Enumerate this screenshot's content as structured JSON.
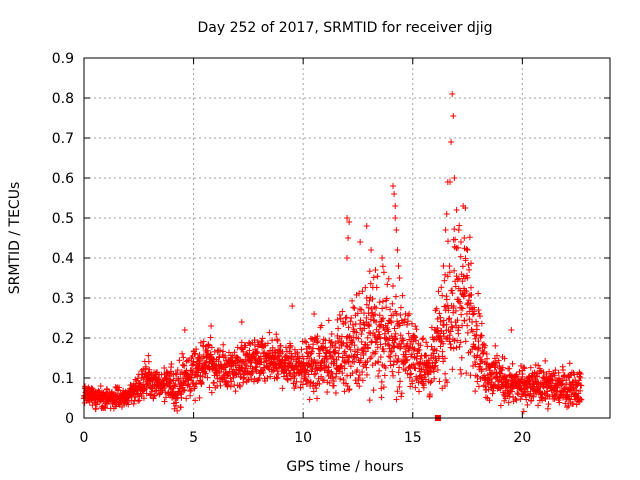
{
  "chart_data": {
    "type": "scatter",
    "title": "Day 252 of 2017, SRMTID for receiver djig",
    "xlabel": "GPS time / hours",
    "ylabel": "SRMTID / TECUs",
    "xlim": [
      0,
      24
    ],
    "ylim": [
      0,
      0.9
    ],
    "xticks": [
      0,
      5,
      10,
      15,
      20
    ],
    "xtick_labels": [
      "0",
      "5",
      "10",
      "15",
      "20"
    ],
    "yticks": [
      0,
      0.1,
      0.2,
      0.3,
      0.4,
      0.5,
      0.6,
      0.7,
      0.8,
      0.9
    ],
    "ytick_labels": [
      "0",
      "0.1",
      "0.2",
      "0.3",
      "0.4",
      "0.5",
      "0.6",
      "0.7",
      "0.8",
      "0.9"
    ],
    "grid": true,
    "marker": "+",
    "color": "#ff0000",
    "series": [
      {
        "name": "SRMTID",
        "profile": [
          {
            "x": 0.0,
            "base": 0.06,
            "spread": 0.025
          },
          {
            "x": 1.0,
            "base": 0.05,
            "spread": 0.02
          },
          {
            "x": 2.0,
            "base": 0.05,
            "spread": 0.02
          },
          {
            "x": 2.8,
            "base": 0.1,
            "spread": 0.04
          },
          {
            "x": 3.5,
            "base": 0.08,
            "spread": 0.03
          },
          {
            "x": 4.3,
            "base": 0.08,
            "spread": 0.05
          },
          {
            "x": 5.5,
            "base": 0.14,
            "spread": 0.05
          },
          {
            "x": 6.5,
            "base": 0.12,
            "spread": 0.04
          },
          {
            "x": 7.5,
            "base": 0.14,
            "spread": 0.05
          },
          {
            "x": 9.0,
            "base": 0.14,
            "spread": 0.05
          },
          {
            "x": 10.5,
            "base": 0.13,
            "spread": 0.06
          },
          {
            "x": 12.0,
            "base": 0.17,
            "spread": 0.08
          },
          {
            "x": 13.0,
            "base": 0.22,
            "spread": 0.12
          },
          {
            "x": 14.0,
            "base": 0.2,
            "spread": 0.12
          },
          {
            "x": 15.0,
            "base": 0.16,
            "spread": 0.07
          },
          {
            "x": 15.8,
            "base": 0.12,
            "spread": 0.06
          },
          {
            "x": 16.8,
            "base": 0.3,
            "spread": 0.15
          },
          {
            "x": 17.5,
            "base": 0.3,
            "spread": 0.14
          },
          {
            "x": 18.3,
            "base": 0.12,
            "spread": 0.06
          },
          {
            "x": 19.5,
            "base": 0.08,
            "spread": 0.04
          },
          {
            "x": 21.0,
            "base": 0.08,
            "spread": 0.04
          },
          {
            "x": 22.7,
            "base": 0.08,
            "spread": 0.04
          }
        ],
        "outliers": [
          {
            "x": 12.0,
            "y": 0.5
          },
          {
            "x": 12.1,
            "y": 0.49
          },
          {
            "x": 12.05,
            "y": 0.45
          },
          {
            "x": 12.0,
            "y": 0.4
          },
          {
            "x": 12.6,
            "y": 0.44
          },
          {
            "x": 12.9,
            "y": 0.48
          },
          {
            "x": 13.1,
            "y": 0.42
          },
          {
            "x": 13.3,
            "y": 0.37
          },
          {
            "x": 13.6,
            "y": 0.4
          },
          {
            "x": 14.1,
            "y": 0.58
          },
          {
            "x": 14.15,
            "y": 0.56
          },
          {
            "x": 14.2,
            "y": 0.53
          },
          {
            "x": 14.2,
            "y": 0.5
          },
          {
            "x": 14.25,
            "y": 0.47
          },
          {
            "x": 14.3,
            "y": 0.42
          },
          {
            "x": 14.35,
            "y": 0.38
          },
          {
            "x": 14.4,
            "y": 0.35
          },
          {
            "x": 14.1,
            "y": 0.33
          },
          {
            "x": 16.4,
            "y": 0.38
          },
          {
            "x": 16.5,
            "y": 0.47
          },
          {
            "x": 16.55,
            "y": 0.51
          },
          {
            "x": 16.6,
            "y": 0.59
          },
          {
            "x": 16.7,
            "y": 0.59
          },
          {
            "x": 16.75,
            "y": 0.69
          },
          {
            "x": 16.85,
            "y": 0.755
          },
          {
            "x": 16.8,
            "y": 0.81
          },
          {
            "x": 16.9,
            "y": 0.6
          },
          {
            "x": 17.0,
            "y": 0.52
          },
          {
            "x": 17.1,
            "y": 0.47
          },
          {
            "x": 17.2,
            "y": 0.44
          },
          {
            "x": 17.3,
            "y": 0.53
          },
          {
            "x": 17.4,
            "y": 0.525
          },
          {
            "x": 17.35,
            "y": 0.45
          },
          {
            "x": 17.5,
            "y": 0.42
          },
          {
            "x": 9.5,
            "y": 0.28
          },
          {
            "x": 10.5,
            "y": 0.26
          },
          {
            "x": 7.2,
            "y": 0.24
          },
          {
            "x": 5.8,
            "y": 0.23
          },
          {
            "x": 4.6,
            "y": 0.22
          },
          {
            "x": 19.5,
            "y": 0.22
          },
          {
            "x": 18.0,
            "y": 0.27
          },
          {
            "x": 12.9,
            "y": 0.3
          }
        ],
        "flag_point": {
          "x": 16.15,
          "y": 0.0
        }
      }
    ]
  }
}
